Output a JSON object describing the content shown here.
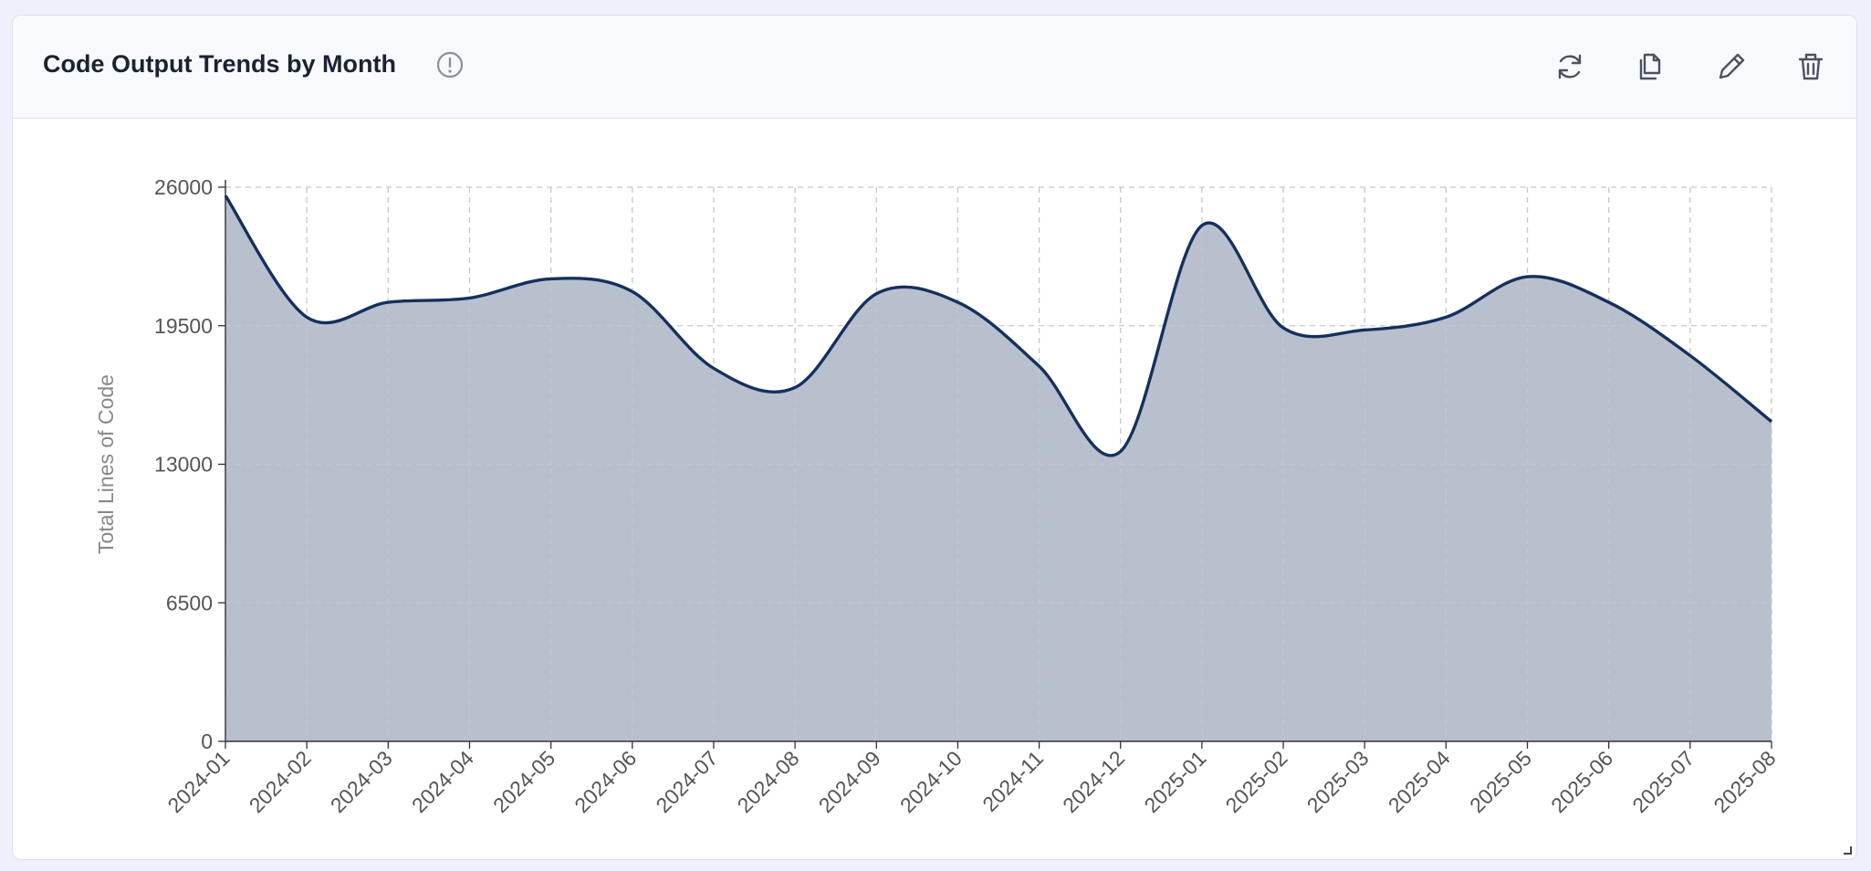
{
  "chart_data": {
    "type": "area",
    "title": "Code Output Trends by Month",
    "y_label": "Total Lines of Code",
    "categories": [
      "2024-01",
      "2024-02",
      "2024-03",
      "2024-04",
      "2024-05",
      "2024-06",
      "2024-07",
      "2024-08",
      "2024-09",
      "2024-10",
      "2024-11",
      "2024-12",
      "2025-01",
      "2025-02",
      "2025-03",
      "2025-04",
      "2025-05",
      "2025-06",
      "2025-07",
      "2025-08"
    ],
    "series": [
      {
        "name": "Total Lines of Code",
        "color": "#15305e",
        "values": [
          25600,
          19900,
          20600,
          20800,
          21700,
          21100,
          17500,
          16600,
          21000,
          20600,
          17600,
          13600,
          24200,
          19400,
          19300,
          19900,
          21800,
          20600,
          18100,
          15000
        ]
      }
    ],
    "ylim": [
      0,
      26000
    ],
    "yticks": [
      0,
      6500,
      13000,
      19500,
      26000
    ],
    "grid": true
  }
}
